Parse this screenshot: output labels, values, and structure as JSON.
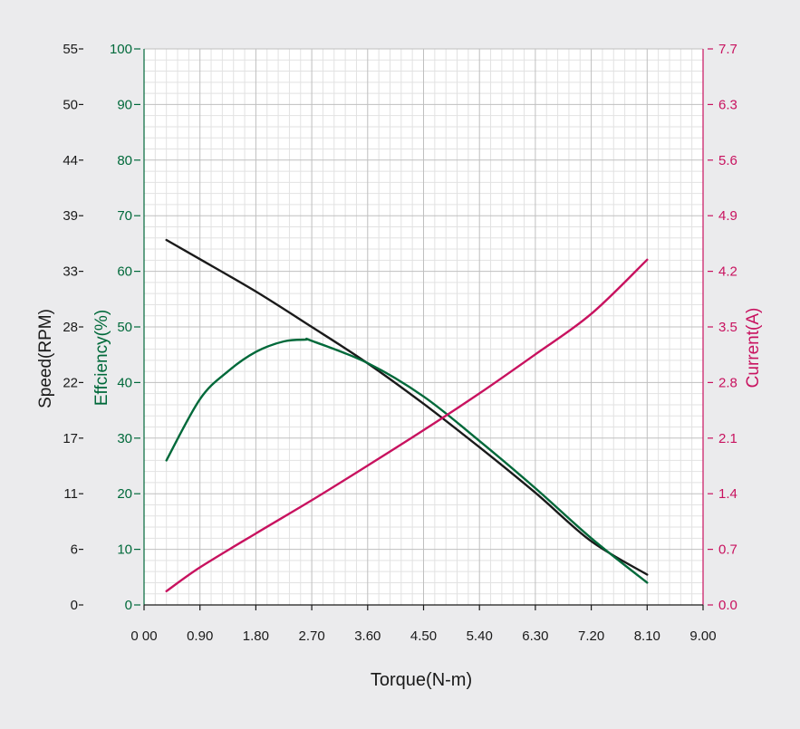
{
  "chart_data": {
    "type": "line",
    "xlabel": "Torque(N-m)",
    "x_ticks": [
      "0 00",
      "0.90",
      "1.80",
      "2.70",
      "3.60",
      "4.50",
      "5.40",
      "6.30",
      "7.20",
      "8.10",
      "9.00"
    ],
    "xlim": [
      0,
      9
    ],
    "grid": true,
    "axes": {
      "speed": {
        "label": "Speed(RPM)",
        "ticks": [
          "0",
          "6",
          "11",
          "17",
          "22",
          "28",
          "33",
          "39",
          "44",
          "50",
          "55"
        ],
        "ylim": [
          0,
          55
        ],
        "color": "#1a1a1a"
      },
      "efficiency": {
        "label": "Effciency(%)",
        "ticks": [
          "0",
          "10",
          "20",
          "30",
          "40",
          "50",
          "60",
          "70",
          "80",
          "90",
          "100"
        ],
        "ylim": [
          0,
          100
        ],
        "color": "#00693a"
      },
      "current": {
        "label": "Current(A)",
        "ticks": [
          "0.0",
          "0.7",
          "1.4",
          "2.1",
          "2.8",
          "3.5",
          "4.2",
          "4.9",
          "5.6",
          "6.3",
          "7.7"
        ],
        "ylim": [
          0,
          7.7
        ],
        "color": "#c8125f"
      }
    },
    "series": [
      {
        "axis": "speed",
        "color": "#1a1a1a",
        "x": [
          0.36,
          0.9,
          1.8,
          2.7,
          3.6,
          4.5,
          5.4,
          6.3,
          7.2,
          8.1
        ],
        "y": [
          36.1,
          34.2,
          31.0,
          27.5,
          23.9,
          19.9,
          15.6,
          11.1,
          6.3,
          3.0
        ]
      },
      {
        "axis": "efficiency",
        "color": "#00693a",
        "x": [
          0.36,
          0.9,
          1.35,
          1.8,
          2.25,
          2.6,
          2.7,
          3.6,
          4.5,
          5.4,
          6.3,
          7.2,
          8.1
        ],
        "y": [
          26,
          37,
          42,
          45.5,
          47.4,
          47.7,
          47.5,
          43.5,
          37.5,
          29.5,
          21,
          12,
          4
        ]
      },
      {
        "axis": "current",
        "color": "#c8125f",
        "x": [
          0.36,
          0.9,
          1.8,
          2.7,
          3.6,
          4.5,
          5.4,
          6.3,
          7.2,
          8.1
        ],
        "y": [
          0.19,
          0.52,
          0.99,
          1.45,
          1.93,
          2.42,
          2.93,
          3.47,
          4.03,
          4.78
        ]
      }
    ]
  }
}
